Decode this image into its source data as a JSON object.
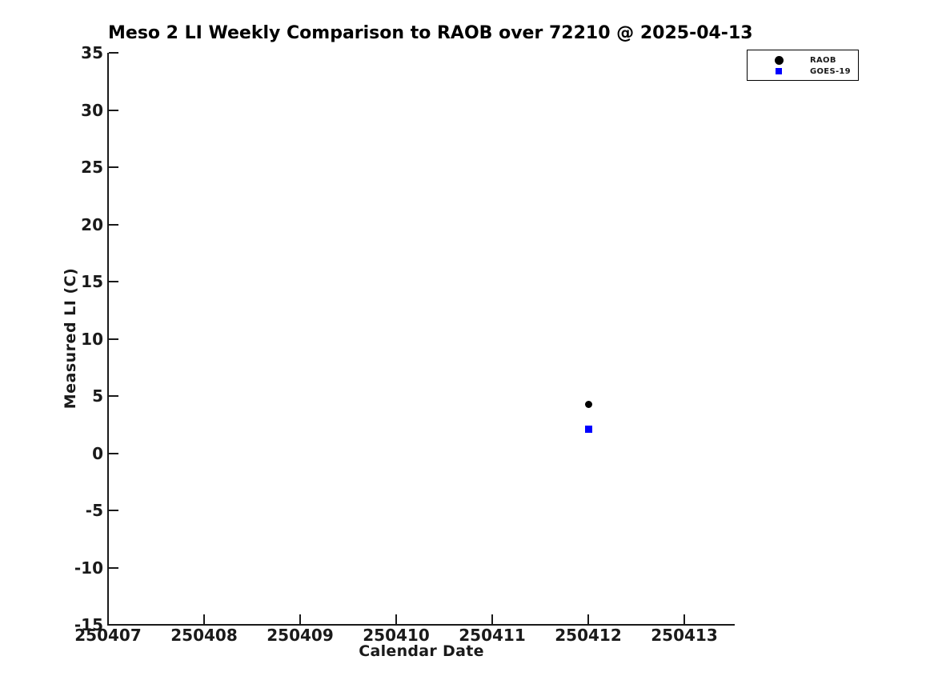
{
  "chart_data": {
    "type": "scatter",
    "title": "Meso 2 LI Weekly Comparison to RAOB over 72210 @ 2025-04-13",
    "xlabel": "Calendar Date",
    "ylabel": "Measured LI (C)",
    "x_ticks": [
      {
        "value": 250407,
        "label": "250407"
      },
      {
        "value": 250408,
        "label": "250408"
      },
      {
        "value": 250409,
        "label": "250409"
      },
      {
        "value": 250410,
        "label": "250410"
      },
      {
        "value": 250411,
        "label": "250411"
      },
      {
        "value": 250412,
        "label": "250412"
      },
      {
        "value": 250413,
        "label": "250413"
      }
    ],
    "y_ticks": [
      35,
      30,
      25,
      20,
      15,
      10,
      5,
      0,
      -5,
      -10,
      -15
    ],
    "xlim": [
      250407,
      250413.525
    ],
    "ylim": [
      -15,
      35
    ],
    "grid": false,
    "legend_position": "top-right",
    "series": [
      {
        "name": "RAOB",
        "marker": "circle",
        "color": "#000000",
        "marker_size": 9,
        "legend_marker_size": 11,
        "points": [
          {
            "x": 250412,
            "y": 4.3
          }
        ]
      },
      {
        "name": "GOES-19",
        "marker": "square",
        "color": "#0000ff",
        "marker_size": 9,
        "legend_marker_size": 8,
        "points": [
          {
            "x": 250412,
            "y": 2.1
          }
        ]
      }
    ]
  },
  "colors": {
    "background": "#ffffff",
    "axis": "#1a1a1a",
    "text": "#1a1a1a",
    "title": "#000000",
    "legend_border": "#000000"
  }
}
